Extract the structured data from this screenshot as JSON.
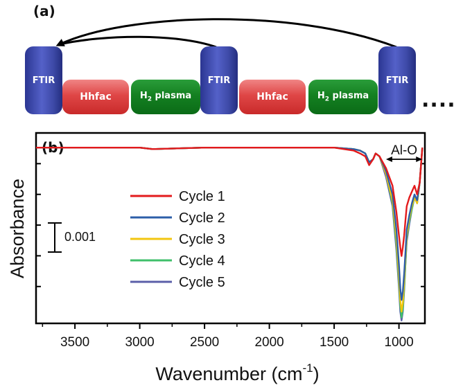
{
  "panel_a": {
    "label": "(a)",
    "steps": [
      {
        "type": "ftir",
        "text": "FTIR"
      },
      {
        "type": "hhfac",
        "text": "Hhfac"
      },
      {
        "type": "plasma",
        "text_main": "H",
        "text_sub": "2",
        "text_rest": " plasma"
      },
      {
        "type": "ftir",
        "text": "FTIR"
      },
      {
        "type": "hhfac",
        "text": "Hhfac"
      },
      {
        "type": "plasma",
        "text_main": "H",
        "text_sub": "2",
        "text_rest": " plasma"
      },
      {
        "type": "ftir",
        "text": "FTIR"
      }
    ],
    "continuation": "...."
  },
  "chart_data": {
    "type": "line",
    "panel_label": "(b)",
    "xlabel_main": "Wavenumber (cm",
    "xlabel_sup": "-1",
    "xlabel_end": ")",
    "ylabel": "Absorbance",
    "xlim": [
      3800,
      800
    ],
    "x_reversed": true,
    "xticks": [
      3500,
      3000,
      2500,
      2000,
      1500,
      1000
    ],
    "ylim": [
      -0.006,
      0.0005
    ],
    "y_tick_labels_shown": false,
    "grid": false,
    "legend_placement": "center-left",
    "scale_bar": {
      "label": "0.001",
      "value": 0.001
    },
    "annotation": {
      "text": "Al-O",
      "x_from": 1100,
      "x_to": 820,
      "y": 0.0002
    },
    "series": [
      {
        "name": "Cycle 1",
        "color": "#e31a1c",
        "x": [
          3800,
          3500,
          3000,
          2900,
          2500,
          2000,
          1500,
          1350,
          1300,
          1260,
          1230,
          1200,
          1180,
          1150,
          1100,
          1050,
          1020,
          1000,
          990,
          980,
          970,
          960,
          950,
          940,
          920,
          900,
          880,
          860,
          840,
          820
        ],
        "y": [
          0,
          0,
          0,
          -5e-05,
          0,
          0,
          0,
          -0.0001,
          -0.0002,
          -0.0003,
          -0.0006,
          -0.0004,
          -0.0002,
          -0.0003,
          -0.0007,
          -0.0013,
          -0.0022,
          -0.003,
          -0.0034,
          -0.0037,
          -0.0034,
          -0.003,
          -0.0025,
          -0.002,
          -0.0017,
          -0.0015,
          -0.0013,
          -0.0016,
          -0.0012,
          0
        ]
      },
      {
        "name": "Cycle 2",
        "color": "#2c5ea8",
        "x": [
          3800,
          3500,
          3000,
          2900,
          2500,
          2000,
          1500,
          1350,
          1300,
          1260,
          1230,
          1200,
          1180,
          1150,
          1100,
          1050,
          1020,
          1000,
          990,
          980,
          970,
          960,
          950,
          940,
          920,
          900,
          880,
          860,
          840,
          820
        ],
        "y": [
          0,
          0,
          0,
          -5e-05,
          0,
          0,
          0,
          -5e-05,
          -0.0001,
          -0.0002,
          -0.0005,
          -0.0004,
          -0.0002,
          -0.0003,
          -0.0008,
          -0.0016,
          -0.0028,
          -0.004,
          -0.0048,
          -0.0052,
          -0.0049,
          -0.0043,
          -0.0036,
          -0.0028,
          -0.0023,
          -0.0019,
          -0.0016,
          -0.0018,
          -0.0012,
          0
        ]
      },
      {
        "name": "Cycle 3",
        "color": "#f2c50f",
        "x": [
          3800,
          3500,
          3000,
          2900,
          2500,
          2000,
          1500,
          1350,
          1300,
          1260,
          1230,
          1200,
          1180,
          1150,
          1100,
          1050,
          1020,
          1000,
          990,
          980,
          970,
          960,
          950,
          940,
          920,
          900,
          880,
          860,
          840,
          820
        ],
        "y": [
          0,
          0,
          0,
          -5e-05,
          0,
          0,
          0,
          -5e-05,
          -0.0001,
          -0.0002,
          -0.0005,
          -0.0004,
          -0.0002,
          -0.0003,
          -0.0009,
          -0.0018,
          -0.0031,
          -0.0044,
          -0.0052,
          -0.0056,
          -0.0053,
          -0.0046,
          -0.0038,
          -0.003,
          -0.0024,
          -0.002,
          -0.0017,
          -0.0019,
          -0.0012,
          0
        ]
      },
      {
        "name": "Cycle 4",
        "color": "#3fbf6a",
        "x": [
          3800,
          3500,
          3000,
          2900,
          2500,
          2000,
          1500,
          1350,
          1300,
          1260,
          1230,
          1200,
          1180,
          1150,
          1100,
          1050,
          1020,
          1000,
          990,
          980,
          970,
          960,
          950,
          940,
          920,
          900,
          880,
          860,
          840,
          820
        ],
        "y": [
          0,
          0,
          0,
          -5e-05,
          0,
          0,
          0,
          -5e-05,
          -0.0001,
          -0.0002,
          -0.0005,
          -0.0004,
          -0.0002,
          -0.0003,
          -0.0009,
          -0.0019,
          -0.0033,
          -0.0046,
          -0.0054,
          -0.0058,
          -0.0055,
          -0.0048,
          -0.004,
          -0.0031,
          -0.0025,
          -0.0021,
          -0.0017,
          -0.0019,
          -0.0012,
          0
        ]
      },
      {
        "name": "Cycle 5",
        "color": "#5b5fa8",
        "x": [
          3800,
          3500,
          3000,
          2900,
          2500,
          2000,
          1500,
          1350,
          1300,
          1260,
          1230,
          1200,
          1180,
          1150,
          1100,
          1050,
          1020,
          1000,
          990,
          980,
          970,
          960,
          950,
          940,
          920,
          900,
          880,
          860,
          840,
          820
        ],
        "y": [
          0,
          0,
          0,
          -5e-05,
          0,
          0,
          0,
          -5e-05,
          -0.0001,
          -0.0002,
          -0.0005,
          -0.0004,
          -0.0002,
          -0.0003,
          -0.001,
          -0.002,
          -0.0035,
          -0.0048,
          -0.0056,
          -0.0059,
          -0.0056,
          -0.0049,
          -0.004,
          -0.0032,
          -0.0026,
          -0.0021,
          -0.0017,
          -0.0019,
          -0.0012,
          0
        ]
      }
    ]
  }
}
